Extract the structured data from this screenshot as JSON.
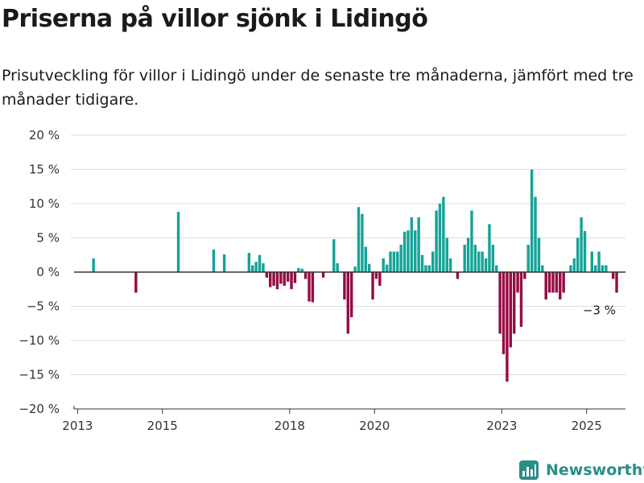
{
  "header": {
    "title": "Priserna på villor sjönk i Lidingö",
    "subtitle": "Prisutveckling för villor i Lidingö under de senaste tre månaderna, jämfört med tre månader tidigare."
  },
  "brand": {
    "name": "Newsworthy",
    "icon": "newsworthy-logo-icon",
    "color": "#2a8d86"
  },
  "chart_data": {
    "type": "bar",
    "title": "Priserna på villor sjönk i Lidingö",
    "subtitle": "Prisutveckling för villor i Lidingö under de senaste tre månaderna, jämfört med tre månader tidigare.",
    "xlabel": "",
    "ylabel": "",
    "x_axis": {
      "type": "date",
      "range": [
        "2012-12",
        "2025-12"
      ],
      "ticks": [
        "2013",
        "2015",
        "2018",
        "2020",
        "2023",
        "2025"
      ]
    },
    "y_axis": {
      "range": [
        -20,
        20
      ],
      "ticks": [
        -20,
        -15,
        -10,
        -5,
        0,
        5,
        10,
        15,
        20
      ],
      "tick_labels": [
        "−20 %",
        "−15 %",
        "−10 %",
        "−5 %",
        "0 %",
        "5 %",
        "10 %",
        "15 %",
        "20 %"
      ]
    },
    "grid": true,
    "colors": {
      "positive": "#16a397",
      "negative": "#960c45"
    },
    "annotation": {
      "label": "−3 %",
      "x": "2025-04",
      "y": -3
    },
    "series": [
      {
        "unit": "%",
        "points": [
          {
            "x": "2013-05",
            "y": 2
          },
          {
            "x": "2014-05",
            "y": -3
          },
          {
            "x": "2015-05",
            "y": 8.8
          },
          {
            "x": "2016-03",
            "y": 3.3
          },
          {
            "x": "2016-06",
            "y": 2.6
          },
          {
            "x": "2017-01",
            "y": 2.8
          },
          {
            "x": "2017-02",
            "y": 1
          },
          {
            "x": "2017-03",
            "y": 1.5
          },
          {
            "x": "2017-04",
            "y": 2.5
          },
          {
            "x": "2017-05",
            "y": 1.3
          },
          {
            "x": "2017-06",
            "y": -0.8
          },
          {
            "x": "2017-07",
            "y": -2.2
          },
          {
            "x": "2017-08",
            "y": -2
          },
          {
            "x": "2017-09",
            "y": -2.5
          },
          {
            "x": "2017-10",
            "y": -1.7
          },
          {
            "x": "2017-11",
            "y": -2
          },
          {
            "x": "2017-12",
            "y": -1.4
          },
          {
            "x": "2018-01",
            "y": -2.5
          },
          {
            "x": "2018-02",
            "y": -1.6
          },
          {
            "x": "2018-03",
            "y": 0.6
          },
          {
            "x": "2018-04",
            "y": 0.5
          },
          {
            "x": "2018-05",
            "y": -1
          },
          {
            "x": "2018-06",
            "y": -4.3
          },
          {
            "x": "2018-07",
            "y": -4.4
          },
          {
            "x": "2018-10",
            "y": -0.8
          },
          {
            "x": "2019-01",
            "y": 4.8
          },
          {
            "x": "2019-02",
            "y": 1.3
          },
          {
            "x": "2019-04",
            "y": -4
          },
          {
            "x": "2019-05",
            "y": -9
          },
          {
            "x": "2019-06",
            "y": -6.6
          },
          {
            "x": "2019-07",
            "y": 0.8
          },
          {
            "x": "2019-08",
            "y": 9.5
          },
          {
            "x": "2019-09",
            "y": 8.5
          },
          {
            "x": "2019-10",
            "y": 3.7
          },
          {
            "x": "2019-11",
            "y": 1.2
          },
          {
            "x": "2019-12",
            "y": -4
          },
          {
            "x": "2020-01",
            "y": -1
          },
          {
            "x": "2020-02",
            "y": -2
          },
          {
            "x": "2020-03",
            "y": 2
          },
          {
            "x": "2020-04",
            "y": 1.1
          },
          {
            "x": "2020-05",
            "y": 3
          },
          {
            "x": "2020-06",
            "y": 3
          },
          {
            "x": "2020-07",
            "y": 3
          },
          {
            "x": "2020-08",
            "y": 4
          },
          {
            "x": "2020-09",
            "y": 5.9
          },
          {
            "x": "2020-10",
            "y": 6.1
          },
          {
            "x": "2020-11",
            "y": 8
          },
          {
            "x": "2020-12",
            "y": 6.1
          },
          {
            "x": "2021-01",
            "y": 8
          },
          {
            "x": "2021-02",
            "y": 2.5
          },
          {
            "x": "2021-03",
            "y": 1
          },
          {
            "x": "2021-04",
            "y": 1
          },
          {
            "x": "2021-05",
            "y": 3
          },
          {
            "x": "2021-06",
            "y": 9
          },
          {
            "x": "2021-07",
            "y": 10
          },
          {
            "x": "2021-08",
            "y": 11
          },
          {
            "x": "2021-09",
            "y": 5
          },
          {
            "x": "2021-10",
            "y": 2
          },
          {
            "x": "2021-12",
            "y": -1
          },
          {
            "x": "2022-02",
            "y": 4
          },
          {
            "x": "2022-03",
            "y": 5
          },
          {
            "x": "2022-04",
            "y": 9
          },
          {
            "x": "2022-05",
            "y": 4
          },
          {
            "x": "2022-06",
            "y": 3
          },
          {
            "x": "2022-07",
            "y": 3
          },
          {
            "x": "2022-08",
            "y": 2
          },
          {
            "x": "2022-09",
            "y": 7
          },
          {
            "x": "2022-10",
            "y": 4
          },
          {
            "x": "2022-11",
            "y": 1
          },
          {
            "x": "2022-12",
            "y": -9
          },
          {
            "x": "2023-01",
            "y": -12
          },
          {
            "x": "2023-02",
            "y": -16
          },
          {
            "x": "2023-03",
            "y": -11
          },
          {
            "x": "2023-04",
            "y": -9
          },
          {
            "x": "2023-05",
            "y": -3
          },
          {
            "x": "2023-06",
            "y": -8
          },
          {
            "x": "2023-07",
            "y": -1
          },
          {
            "x": "2023-08",
            "y": 4
          },
          {
            "x": "2023-09",
            "y": 15
          },
          {
            "x": "2023-10",
            "y": 11
          },
          {
            "x": "2023-11",
            "y": 5
          },
          {
            "x": "2023-12",
            "y": 1
          },
          {
            "x": "2024-01",
            "y": -4
          },
          {
            "x": "2024-02",
            "y": -3
          },
          {
            "x": "2024-03",
            "y": -3
          },
          {
            "x": "2024-04",
            "y": -3
          },
          {
            "x": "2024-05",
            "y": -4
          },
          {
            "x": "2024-06",
            "y": -3
          },
          {
            "x": "2024-08",
            "y": 1
          },
          {
            "x": "2024-09",
            "y": 2
          },
          {
            "x": "2024-10",
            "y": 5
          },
          {
            "x": "2024-11",
            "y": 8
          },
          {
            "x": "2024-12",
            "y": 6
          },
          {
            "x": "2025-02",
            "y": 3
          },
          {
            "x": "2025-03",
            "y": 1
          },
          {
            "x": "2025-04",
            "y": 3
          },
          {
            "x": "2025-05",
            "y": 1
          },
          {
            "x": "2025-06",
            "y": 1
          },
          {
            "x": "2025-08",
            "y": -1
          },
          {
            "x": "2025-09",
            "y": -3
          }
        ]
      }
    ]
  }
}
